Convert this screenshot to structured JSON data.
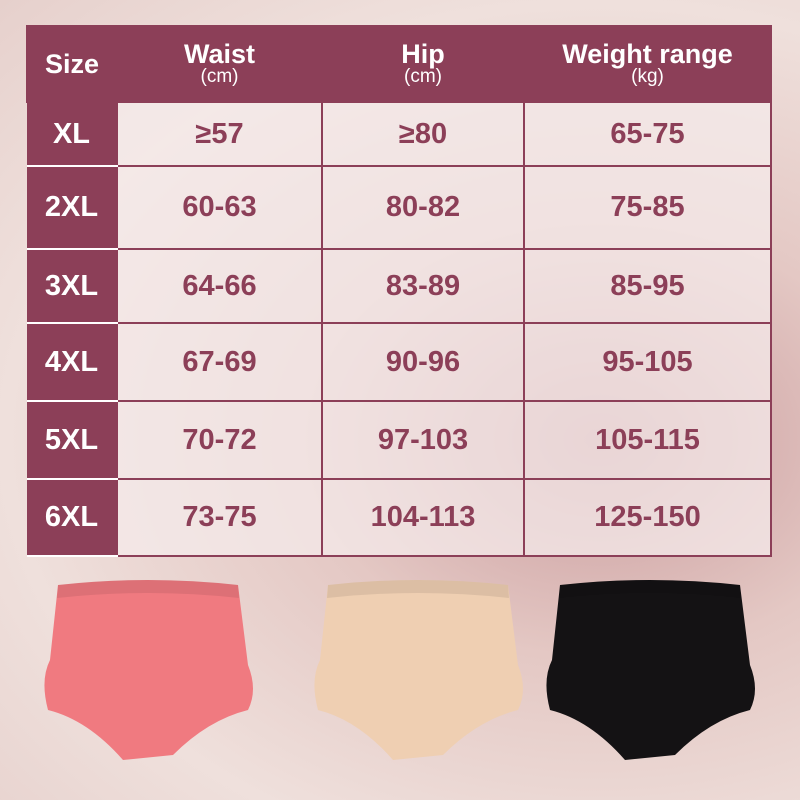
{
  "table": {
    "headers": [
      {
        "label": "Size",
        "unit": ""
      },
      {
        "label": "Waist",
        "unit": "(cm)"
      },
      {
        "label": "Hip",
        "unit": "(cm)"
      },
      {
        "label": "Weight range",
        "unit": "(kg)"
      }
    ],
    "rows": [
      [
        "XL",
        "≥57",
        "≥80",
        "65-75"
      ],
      [
        "2XL",
        "60-63",
        "80-82",
        "75-85"
      ],
      [
        "3XL",
        "64-66",
        "83-89",
        "85-95"
      ],
      [
        "4XL",
        "67-69",
        "90-96",
        "95-105"
      ],
      [
        "5XL",
        "70-72",
        "97-103",
        "105-115"
      ],
      [
        "6XL",
        "73-75",
        "104-113",
        "125-150"
      ]
    ]
  },
  "products": [
    {
      "color": "#f07a80"
    },
    {
      "color": "#efcfb2"
    },
    {
      "color": "#141214"
    }
  ],
  "colors": {
    "accent": "#8c3f58"
  }
}
